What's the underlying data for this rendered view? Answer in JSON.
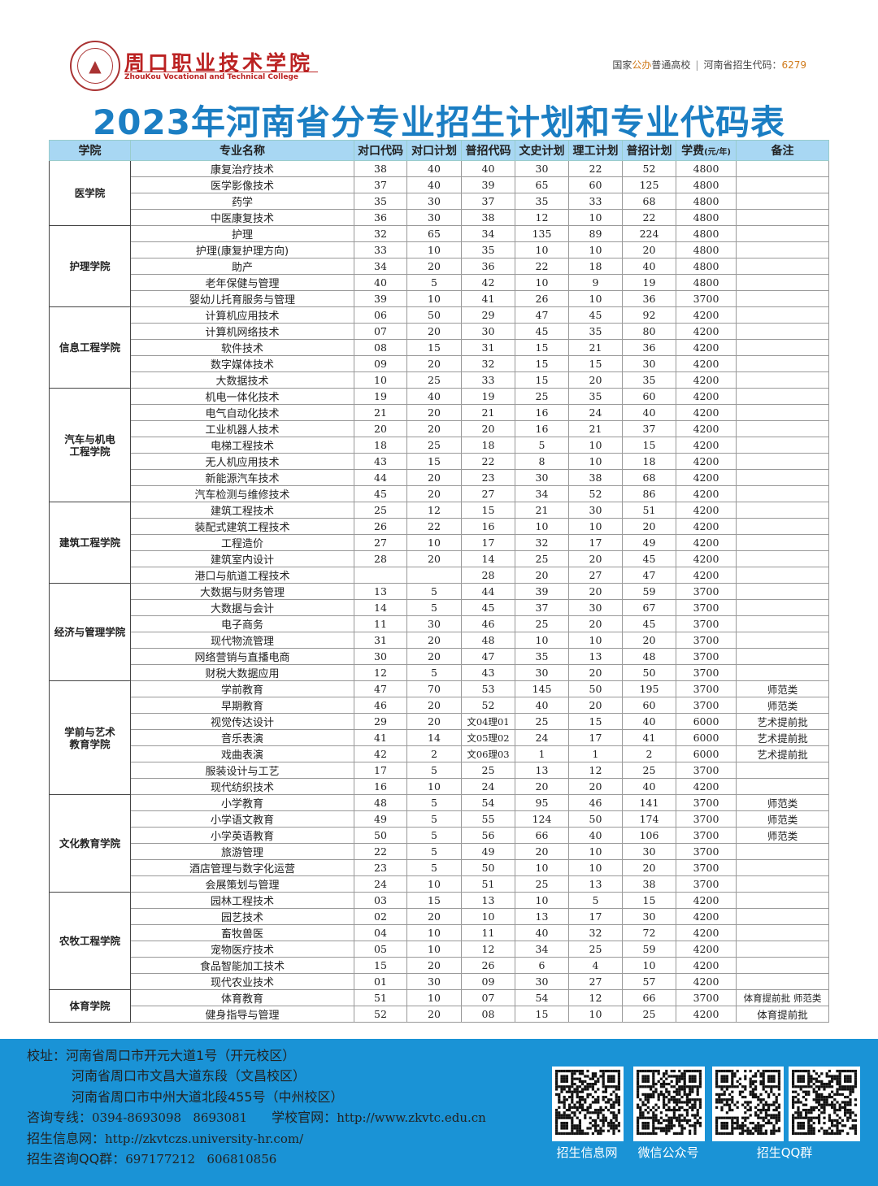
{
  "header": {
    "logo_cn": "周口职业技术学院",
    "logo_en": "ZhouKou Vocational and Technical College",
    "tagline_a": "国家",
    "tagline_b": "公办",
    "tagline_c": "普通高校",
    "tagline_sep": "|",
    "tagline_d": "河南省招生代码：",
    "tagline_code": "6279"
  },
  "title": "2023年河南省分专业招生计划和专业代码表",
  "table": {
    "columns": [
      "学院",
      "专业名称",
      "对口代码",
      "对口计划",
      "普招代码",
      "文史计划",
      "理工计划",
      "普招计划",
      "学费",
      "(元/年)",
      "备注"
    ],
    "colleges": [
      {
        "name": "医学院",
        "rows": [
          [
            "康复治疗技术",
            "38",
            "40",
            "40",
            "30",
            "22",
            "52",
            "4800",
            ""
          ],
          [
            "医学影像技术",
            "37",
            "40",
            "39",
            "65",
            "60",
            "125",
            "4800",
            ""
          ],
          [
            "药学",
            "35",
            "30",
            "37",
            "35",
            "33",
            "68",
            "4800",
            ""
          ],
          [
            "中医康复技术",
            "36",
            "30",
            "38",
            "12",
            "10",
            "22",
            "4800",
            ""
          ]
        ]
      },
      {
        "name": "护理学院",
        "rows": [
          [
            "护理",
            "32",
            "65",
            "34",
            "135",
            "89",
            "224",
            "4800",
            ""
          ],
          [
            "护理(康复护理方向)",
            "33",
            "10",
            "35",
            "10",
            "10",
            "20",
            "4800",
            ""
          ],
          [
            "助产",
            "34",
            "20",
            "36",
            "22",
            "18",
            "40",
            "4800",
            ""
          ],
          [
            "老年保健与管理",
            "40",
            "5",
            "42",
            "10",
            "9",
            "19",
            "4800",
            ""
          ],
          [
            "婴幼儿托育服务与管理",
            "39",
            "10",
            "41",
            "26",
            "10",
            "36",
            "3700",
            ""
          ]
        ]
      },
      {
        "name": "信息工程学院",
        "rows": [
          [
            "计算机应用技术",
            "06",
            "50",
            "29",
            "47",
            "45",
            "92",
            "4200",
            ""
          ],
          [
            "计算机网络技术",
            "07",
            "20",
            "30",
            "45",
            "35",
            "80",
            "4200",
            ""
          ],
          [
            "软件技术",
            "08",
            "15",
            "31",
            "15",
            "21",
            "36",
            "4200",
            ""
          ],
          [
            "数字媒体技术",
            "09",
            "20",
            "32",
            "15",
            "15",
            "30",
            "4200",
            ""
          ],
          [
            "大数据技术",
            "10",
            "25",
            "33",
            "15",
            "20",
            "35",
            "4200",
            ""
          ]
        ]
      },
      {
        "name": "汽车与机电工程学院",
        "rows": [
          [
            "机电一体化技术",
            "19",
            "40",
            "19",
            "25",
            "35",
            "60",
            "4200",
            ""
          ],
          [
            "电气自动化技术",
            "21",
            "20",
            "21",
            "16",
            "24",
            "40",
            "4200",
            ""
          ],
          [
            "工业机器人技术",
            "20",
            "20",
            "20",
            "16",
            "21",
            "37",
            "4200",
            ""
          ],
          [
            "电梯工程技术",
            "18",
            "25",
            "18",
            "5",
            "10",
            "15",
            "4200",
            ""
          ],
          [
            "无人机应用技术",
            "43",
            "15",
            "22",
            "8",
            "10",
            "18",
            "4200",
            ""
          ],
          [
            "新能源汽车技术",
            "44",
            "20",
            "23",
            "30",
            "38",
            "68",
            "4200",
            ""
          ],
          [
            "汽车检测与维修技术",
            "45",
            "20",
            "27",
            "34",
            "52",
            "86",
            "4200",
            ""
          ]
        ]
      },
      {
        "name": "建筑工程学院",
        "rows": [
          [
            "建筑工程技术",
            "25",
            "12",
            "15",
            "21",
            "30",
            "51",
            "4200",
            ""
          ],
          [
            "装配式建筑工程技术",
            "26",
            "22",
            "16",
            "10",
            "10",
            "20",
            "4200",
            ""
          ],
          [
            "工程造价",
            "27",
            "10",
            "17",
            "32",
            "17",
            "49",
            "4200",
            ""
          ],
          [
            "建筑室内设计",
            "28",
            "20",
            "14",
            "25",
            "20",
            "45",
            "4200",
            ""
          ],
          [
            "港口与航道工程技术",
            "",
            "",
            "28",
            "20",
            "27",
            "47",
            "4200",
            ""
          ]
        ]
      },
      {
        "name": "经济与管理学院",
        "rows": [
          [
            "大数据与财务管理",
            "13",
            "5",
            "44",
            "39",
            "20",
            "59",
            "3700",
            ""
          ],
          [
            "大数据与会计",
            "14",
            "5",
            "45",
            "37",
            "30",
            "67",
            "3700",
            ""
          ],
          [
            "电子商务",
            "11",
            "30",
            "46",
            "25",
            "20",
            "45",
            "3700",
            ""
          ],
          [
            "现代物流管理",
            "31",
            "20",
            "48",
            "10",
            "10",
            "20",
            "3700",
            ""
          ],
          [
            "网络营销与直播电商",
            "30",
            "20",
            "47",
            "35",
            "13",
            "48",
            "3700",
            ""
          ],
          [
            "财税大数据应用",
            "12",
            "5",
            "43",
            "30",
            "20",
            "50",
            "3700",
            ""
          ]
        ]
      },
      {
        "name": "学前与艺术教育学院",
        "rows": [
          [
            "学前教育",
            "47",
            "70",
            "53",
            "145",
            "50",
            "195",
            "3700",
            "师范类"
          ],
          [
            "早期教育",
            "46",
            "20",
            "52",
            "40",
            "20",
            "60",
            "3700",
            "师范类"
          ],
          [
            "视觉传达设计",
            "29",
            "20",
            "文04理01",
            "25",
            "15",
            "40",
            "6000",
            "艺术提前批"
          ],
          [
            "音乐表演",
            "41",
            "14",
            "文05理02",
            "24",
            "17",
            "41",
            "6000",
            "艺术提前批"
          ],
          [
            "戏曲表演",
            "42",
            "2",
            "文06理03",
            "1",
            "1",
            "2",
            "6000",
            "艺术提前批"
          ],
          [
            "服装设计与工艺",
            "17",
            "5",
            "25",
            "13",
            "12",
            "25",
            "3700",
            ""
          ],
          [
            "现代纺织技术",
            "16",
            "10",
            "24",
            "20",
            "20",
            "40",
            "4200",
            ""
          ]
        ]
      },
      {
        "name": "文化教育学院",
        "rows": [
          [
            "小学教育",
            "48",
            "5",
            "54",
            "95",
            "46",
            "141",
            "3700",
            "师范类"
          ],
          [
            "小学语文教育",
            "49",
            "5",
            "55",
            "124",
            "50",
            "174",
            "3700",
            "师范类"
          ],
          [
            "小学英语教育",
            "50",
            "5",
            "56",
            "66",
            "40",
            "106",
            "3700",
            "师范类"
          ],
          [
            "旅游管理",
            "22",
            "5",
            "49",
            "20",
            "10",
            "30",
            "3700",
            ""
          ],
          [
            "酒店管理与数字化运营",
            "23",
            "5",
            "50",
            "10",
            "10",
            "20",
            "3700",
            ""
          ],
          [
            "会展策划与管理",
            "24",
            "10",
            "51",
            "25",
            "13",
            "38",
            "3700",
            ""
          ]
        ]
      },
      {
        "name": "农牧工程学院",
        "rows": [
          [
            "园林工程技术",
            "03",
            "15",
            "13",
            "10",
            "5",
            "15",
            "4200",
            ""
          ],
          [
            "园艺技术",
            "02",
            "20",
            "10",
            "13",
            "17",
            "30",
            "4200",
            ""
          ],
          [
            "畜牧兽医",
            "04",
            "10",
            "11",
            "40",
            "32",
            "72",
            "4200",
            ""
          ],
          [
            "宠物医疗技术",
            "05",
            "10",
            "12",
            "34",
            "25",
            "59",
            "4200",
            ""
          ],
          [
            "食品智能加工技术",
            "15",
            "20",
            "26",
            "6",
            "4",
            "10",
            "4200",
            ""
          ],
          [
            "现代农业技术",
            "01",
            "30",
            "09",
            "30",
            "27",
            "57",
            "4200",
            ""
          ]
        ]
      },
      {
        "name": "体育学院",
        "rows": [
          [
            "体育教育",
            "51",
            "10",
            "07",
            "54",
            "12",
            "66",
            "3700",
            "体育提前批 师范类"
          ],
          [
            "健身指导与管理",
            "52",
            "20",
            "08",
            "15",
            "10",
            "25",
            "4200",
            "体育提前批"
          ]
        ]
      }
    ]
  },
  "footer": {
    "address_label": "校址：",
    "addresses": [
      "河南省周口市开元大道1号（开元校区）",
      "河南省周口市文昌大道东段（文昌校区）",
      "河南省周口市中州大道北段455号（中州校区）"
    ],
    "hotline_label": "咨询专线：",
    "hotline": "0394-8693098   8693081",
    "website_label": "学校官网：",
    "website": "http://www.zkvtc.edu.cn",
    "admission_label": "招生信息网：",
    "admission_site": "http://zkvtczs.university-hr.com/",
    "qq_label": "招生咨询QQ群：",
    "qq": "697177212   606810856",
    "qr_labels": [
      "招生信息网",
      "微信公众号",
      "招生QQ群"
    ],
    "colors": {
      "background": "#1a93d6",
      "title": "#1b7ec3",
      "header_row": "#a8d7f3",
      "brand": "#b22222"
    }
  }
}
